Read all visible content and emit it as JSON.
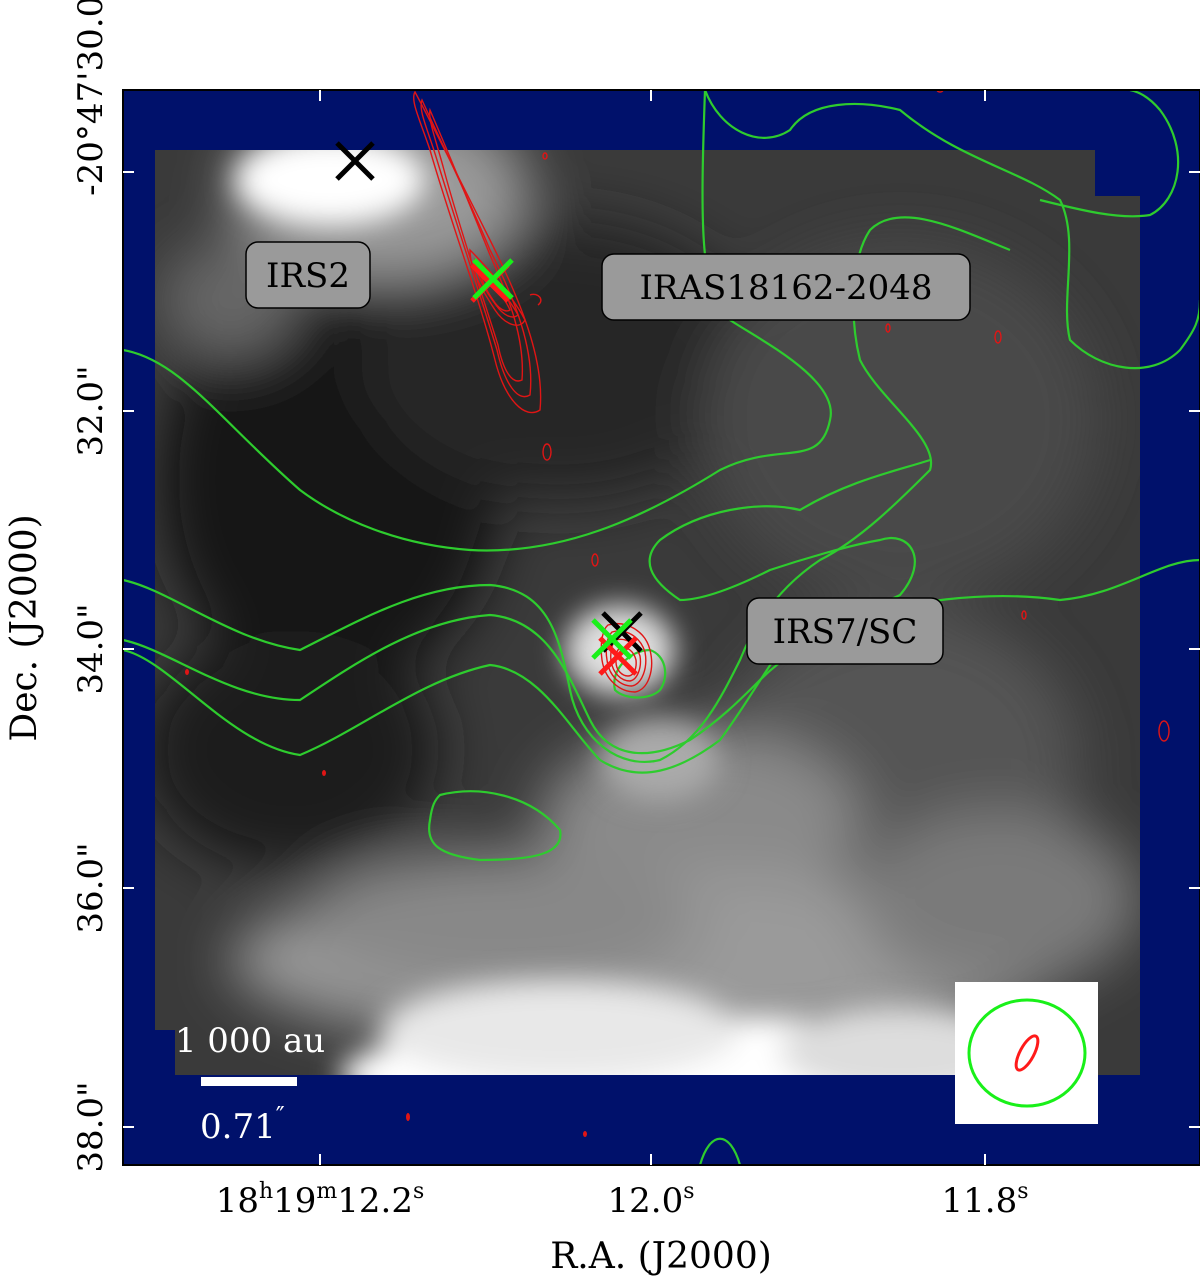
{
  "figure": {
    "axes": {
      "xlabel": "R.A. (J2000)",
      "ylabel": "Dec. (J2000)",
      "x_ticks": [
        {
          "ra_seconds": 12.2,
          "main": "18",
          "h": "h",
          "m_val": "19",
          "m": "m",
          "s_val": "12.2",
          "s": "s"
        },
        {
          "ra_seconds": 12.0,
          "main": "",
          "h": "",
          "m_val": "",
          "m": "",
          "s_val": "12.0",
          "s": "s"
        },
        {
          "ra_seconds": 11.8,
          "main": "",
          "h": "",
          "m_val": "",
          "m": "",
          "s_val": "11.8",
          "s": "s"
        }
      ],
      "y_ticks": [
        {
          "dec_arcsec": 30.0,
          "label": "-20°47'30.0\""
        },
        {
          "dec_arcsec": 32.0,
          "label": "32.0\""
        },
        {
          "dec_arcsec": 34.0,
          "label": "34.0\""
        },
        {
          "dec_arcsec": 36.0,
          "label": "36.0\""
        },
        {
          "dec_arcsec": 38.0,
          "label": "38.0\""
        }
      ]
    },
    "source_labels": [
      "IRS2",
      "IRAS18162-2048",
      "IRS7/SC"
    ],
    "scalebar": {
      "physical": "1 000 au",
      "angular": "0.71",
      "angular_unit": "″"
    },
    "colors": {
      "background": "#00116b",
      "contour_green": "#2ecc2e",
      "contour_red": "#e01515",
      "cross_green": "#19f019",
      "cross_red": "#ff1a1a",
      "cross_black": "#000000",
      "label_box": "#9a9a9a"
    },
    "image_type": "grayscale infrared image with green and red contour overlays",
    "markers": [
      {
        "color": "black",
        "ra_seconds": 12.15,
        "dec_arcsec": 29.9
      },
      {
        "color": "green",
        "ra_seconds": 12.1,
        "dec_arcsec": 30.95
      },
      {
        "color": "red",
        "ra_seconds": 12.1,
        "dec_arcsec": 30.95
      },
      {
        "color": "black",
        "ra_seconds": 12.017,
        "dec_arcsec": 33.9
      },
      {
        "color": "green",
        "ra_seconds": 12.023,
        "dec_arcsec": 33.95
      },
      {
        "color": "red",
        "ra_seconds": 12.021,
        "dec_arcsec": 34.05
      }
    ],
    "beams": [
      "green ellipse",
      "red ellipse"
    ]
  }
}
